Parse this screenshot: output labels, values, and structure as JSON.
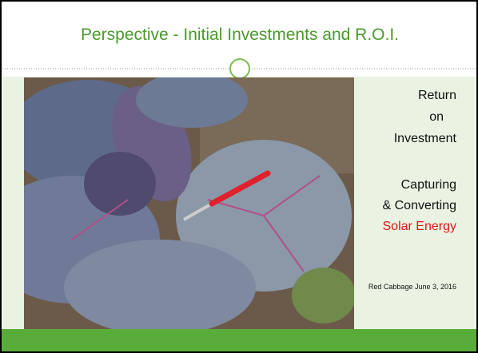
{
  "slide": {
    "title": "Perspective - Initial Investments and R.O.I.",
    "sidebar": {
      "heading": [
        "Return",
        "on",
        "Investment"
      ],
      "subheading": [
        "Capturing",
        "& Converting"
      ],
      "highlight": "Solar Energy",
      "caption": "Red Cabbage June 3, 2016"
    }
  }
}
